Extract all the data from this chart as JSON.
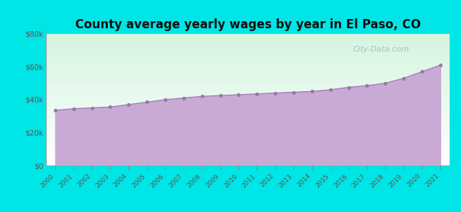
{
  "title": "County average yearly wages by year in El Paso, CO",
  "years": [
    2000,
    2001,
    2002,
    2003,
    2004,
    2005,
    2006,
    2007,
    2008,
    2009,
    2010,
    2011,
    2012,
    2013,
    2014,
    2015,
    2016,
    2017,
    2018,
    2019,
    2020,
    2021
  ],
  "wages": [
    33500,
    34500,
    35000,
    35500,
    37000,
    38500,
    40000,
    41000,
    42000,
    42500,
    43000,
    43500,
    44000,
    44500,
    45000,
    46000,
    47500,
    48500,
    50000,
    53000,
    57000,
    61000
  ],
  "background_color": "#00e5e5",
  "plot_bg_topleft": "#d4f5e0",
  "plot_bg_topright": "#edfdf5",
  "plot_bg_bottom": "#ffffff",
  "fill_color": "#c9aad4",
  "line_color": "#a07db8",
  "marker_color": "#9977aa",
  "title_color": "#111111",
  "title_fontsize": 12,
  "tick_label_color": "#555555",
  "ylim": [
    0,
    80000
  ],
  "yticks": [
    0,
    20000,
    40000,
    60000,
    80000
  ],
  "ytick_labels": [
    "$0",
    "$20k",
    "$40k",
    "$60k",
    "$80k"
  ],
  "watermark_text": "City-Data.com"
}
